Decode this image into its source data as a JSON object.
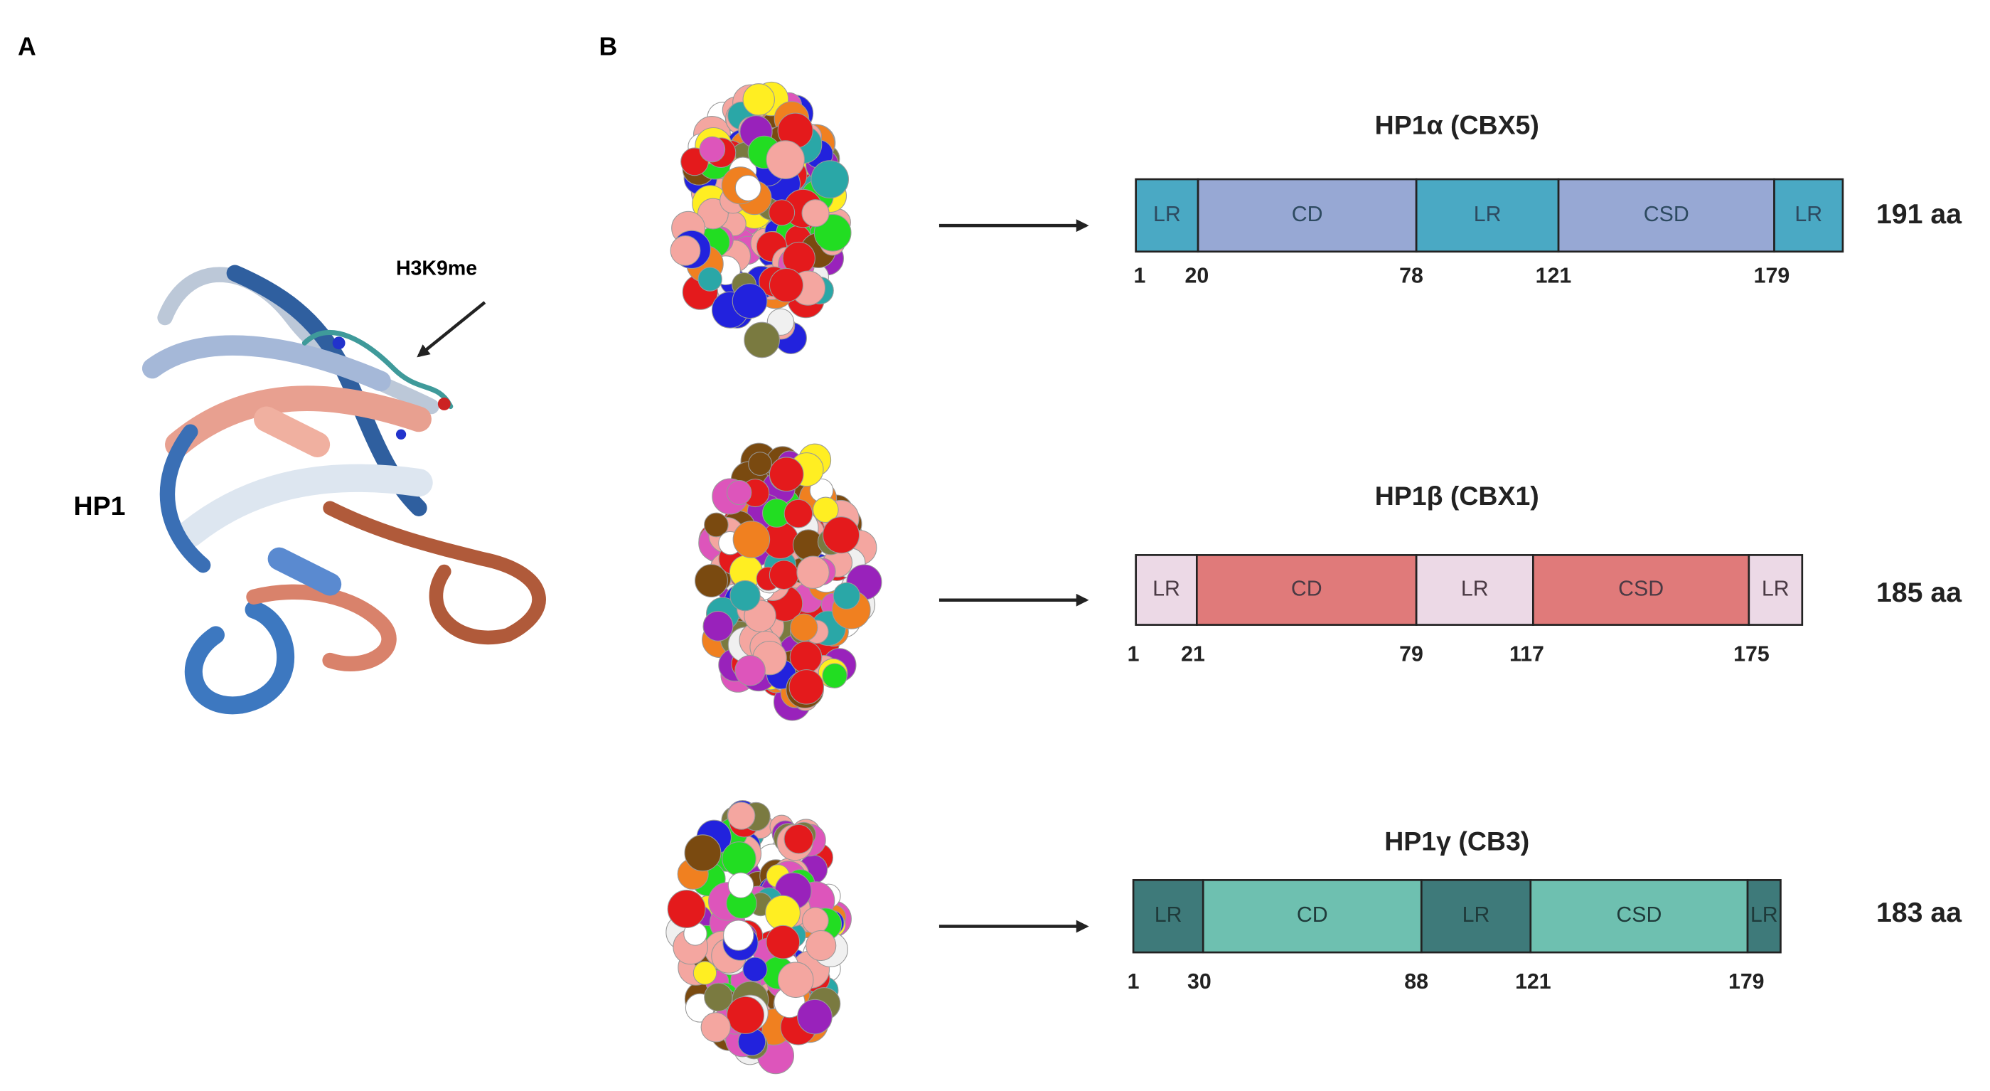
{
  "panel_a": {
    "label": "A",
    "protein": "HP1",
    "annotation": "H3K9me"
  },
  "panel_b": {
    "label": "B",
    "proteins": [
      {
        "name": "HP1α (CBX5)",
        "length": "191 aa",
        "domains": [
          "LR",
          "CD",
          "LR",
          "CSD",
          "LR"
        ],
        "positions": [
          1,
          20,
          78,
          121,
          179
        ]
      },
      {
        "name": "HP1β (CBX1)",
        "length": "185 aa",
        "domains": [
          "LR",
          "CD",
          "LR",
          "CSD",
          "LR"
        ],
        "positions": [
          1,
          21,
          79,
          117,
          175
        ]
      },
      {
        "name": "HP1γ (CB3)",
        "length": "183 aa",
        "domains": [
          "LR",
          "CD",
          "LR",
          "CSD",
          "LR"
        ],
        "positions": [
          1,
          30,
          88,
          121,
          179
        ]
      }
    ]
  }
}
